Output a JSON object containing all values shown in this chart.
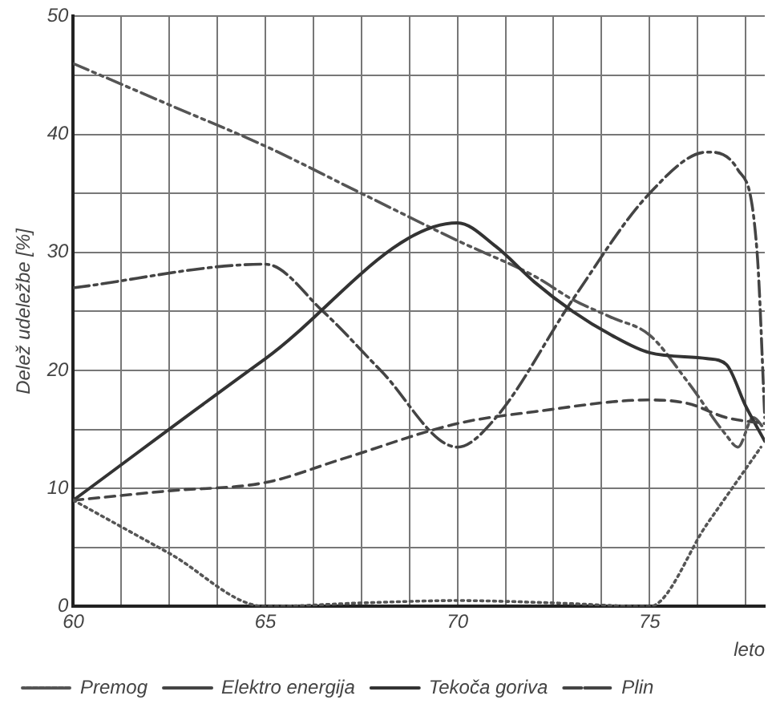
{
  "chart_data": {
    "type": "line",
    "ylabel": "Delež udeležbe [%]",
    "xlabel": "leto",
    "xlim": [
      60,
      78
    ],
    "xticks": [
      60,
      {
        "value": 61.25,
        "label": null
      },
      {
        "value": 62.5,
        "label": null
      },
      {
        "value": 63.75,
        "label": null
      },
      65,
      {
        "value": 66.25,
        "label": null
      },
      {
        "value": 67.5,
        "label": null
      },
      {
        "value": 68.75,
        "label": null
      },
      70,
      {
        "value": 71.25,
        "label": null
      },
      {
        "value": 72.5,
        "label": null
      },
      {
        "value": 73.75,
        "label": null
      },
      75,
      {
        "value": 76.25,
        "label": null
      },
      {
        "value": 77.5,
        "label": null
      }
    ],
    "ylim": [
      0,
      50
    ],
    "yticks": [
      0,
      {
        "value": 5,
        "label": null
      },
      10,
      {
        "value": 15,
        "label": null
      },
      20,
      {
        "value": 25,
        "label": null
      },
      30,
      {
        "value": 35,
        "label": null
      },
      40,
      {
        "value": 45,
        "label": null
      },
      50
    ],
    "grid": true,
    "legend": "bottom left",
    "marker": "none",
    "series": [
      {
        "name": "Premog",
        "color": "#555555",
        "line_style": "dotted",
        "x": [
          60,
          62.5,
          65,
          67.5,
          70,
          72.5,
          75,
          76.5,
          77.9
        ],
        "values": [
          9,
          4.5,
          0,
          0.3,
          0.5,
          0.3,
          0,
          7,
          13.5
        ]
      },
      {
        "name": "Elektro energija",
        "color": "#444444",
        "line_style": "dashed",
        "x": [
          60,
          62.5,
          65,
          67,
          70,
          72,
          75,
          76,
          77,
          78
        ],
        "values": [
          9,
          9.8,
          10.5,
          12.5,
          15.5,
          16.5,
          17.5,
          17.2,
          16,
          15.5
        ]
      },
      {
        "name": "Tekoča goriva",
        "color": "#333333",
        "line_style": "solid",
        "x": [
          60,
          65,
          70,
          71,
          72,
          73,
          74,
          75,
          76.5,
          77,
          77.5,
          78
        ],
        "values": [
          9,
          21,
          32.5,
          30.5,
          27.5,
          25,
          23,
          21.5,
          21,
          20.5,
          17,
          14
        ]
      },
      {
        "name": "Plin",
        "color": "#444444",
        "line_style": "dashdot",
        "x": [
          60,
          65,
          66.5,
          68,
          70,
          71,
          73,
          75,
          76.5,
          77.3,
          77.8,
          78
        ],
        "values": [
          27,
          29,
          25,
          20,
          13.5,
          16,
          26,
          35,
          38.5,
          37,
          30,
          16
        ]
      },
      {
        "color": "#555555",
        "line_style": "dashdotdot",
        "x": [
          60,
          62.5,
          65,
          67.5,
          70,
          72,
          73,
          74,
          75,
          76,
          77,
          77.3,
          77.7,
          78
        ],
        "values": [
          46,
          42.5,
          39,
          35,
          31,
          28,
          26,
          24.5,
          23,
          19,
          14.5,
          13.5,
          16,
          15
        ]
      }
    ]
  }
}
